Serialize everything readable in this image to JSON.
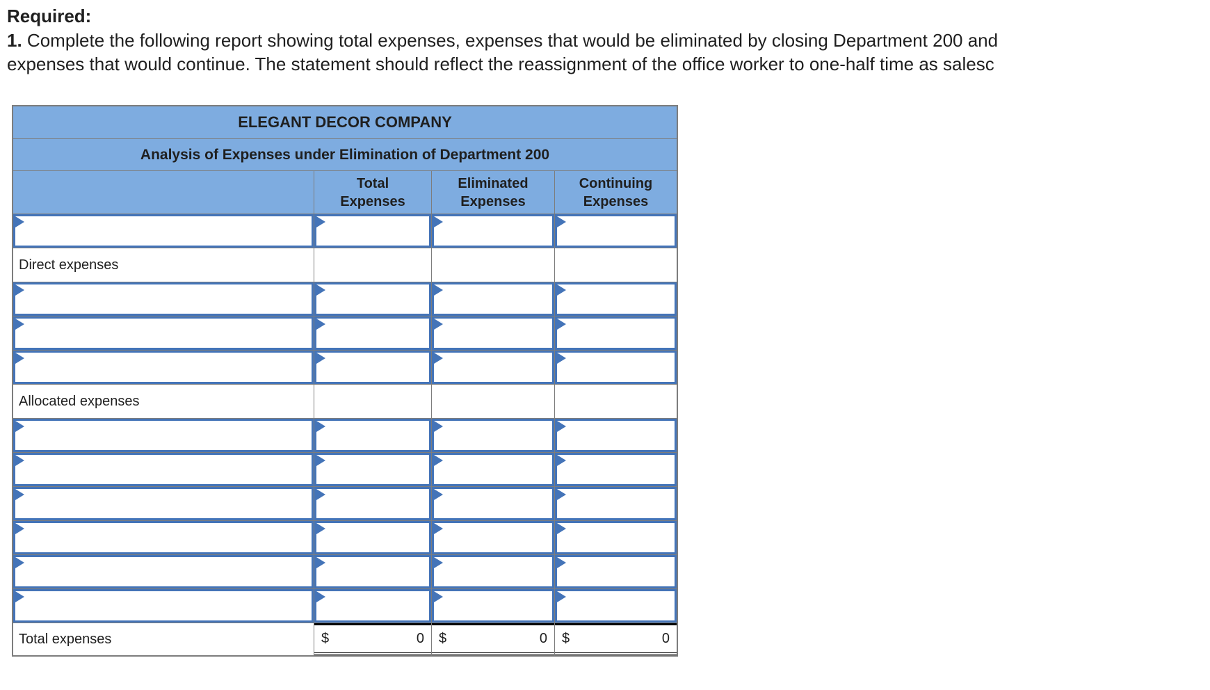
{
  "instructions": {
    "heading": "Required:",
    "item_number": "1.",
    "line1": "Complete the following report showing total expenses, expenses that would be eliminated by closing Department 200 and",
    "line2": "expenses that would continue. The statement should reflect the reassignment of the office worker to one-half time as salesc"
  },
  "table": {
    "title": "ELEGANT DECOR COMPANY",
    "subtitle": "Analysis of Expenses under Elimination of Department 200",
    "col_headers": [
      "Total Expenses",
      "Eliminated Expenses",
      "Continuing Expenses"
    ],
    "rows": [
      {
        "type": "input"
      },
      {
        "type": "section_label",
        "label": "Direct expenses"
      },
      {
        "type": "input"
      },
      {
        "type": "input"
      },
      {
        "type": "input"
      },
      {
        "type": "section_label",
        "label": "Allocated expenses"
      },
      {
        "type": "input"
      },
      {
        "type": "input"
      },
      {
        "type": "input"
      },
      {
        "type": "input"
      },
      {
        "type": "input"
      },
      {
        "type": "input"
      },
      {
        "type": "total",
        "label": "Total expenses",
        "totals": [
          {
            "currency": "$",
            "value": "0"
          },
          {
            "currency": "$",
            "value": "0"
          },
          {
            "currency": "$",
            "value": "0"
          }
        ]
      }
    ],
    "input_cell_value": "",
    "icons": {
      "input_flag": "right-pointing-triangle"
    }
  },
  "colors": {
    "header_blue": "#7EACE0",
    "input_border_blue": "#4474B8",
    "grid_gray": "#7D7D7D",
    "total_border_black": "#000000",
    "text_dark": "#1F1F1F",
    "background": "#FFFFFF"
  }
}
